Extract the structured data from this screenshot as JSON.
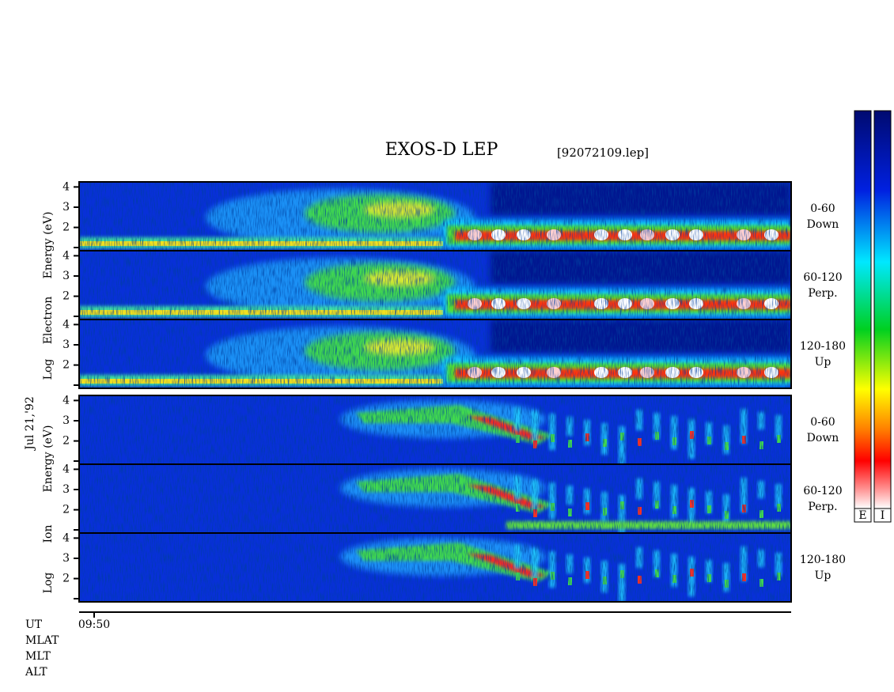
{
  "header": {
    "title": "EXOS-D LEP",
    "file": "[92072109.lep]"
  },
  "date": "Jul 21,'92",
  "groups": [
    {
      "ylabel": [
        "Log",
        "Electron",
        "Energy (eV)"
      ],
      "panels": [
        {
          "range": "0-60",
          "direction": "Down"
        },
        {
          "range": "60-120",
          "direction": "Perp."
        },
        {
          "range": "120-180",
          "direction": "Up"
        }
      ]
    },
    {
      "ylabel": [
        "Log",
        "Ion",
        "Energy (eV)"
      ],
      "panels": [
        {
          "range": "0-60",
          "direction": "Down"
        },
        {
          "range": "60-120",
          "direction": "Perp."
        },
        {
          "range": "120-180",
          "direction": "Up"
        }
      ]
    }
  ],
  "axis": {
    "ylim": [
      0.85,
      4.25
    ],
    "yticks": [
      2,
      3,
      4
    ]
  },
  "time_axis": {
    "ticks": [
      "09:50"
    ],
    "rows": [
      "UT",
      "MLAT",
      "MLT",
      "ALT"
    ]
  },
  "colorbar": {
    "labels": [
      "E",
      "I"
    ]
  }
}
